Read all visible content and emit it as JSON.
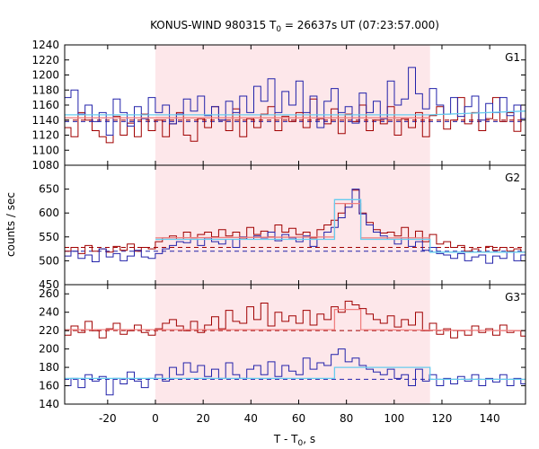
{
  "chart_data": {
    "type": "line",
    "title": "KONUS-WIND 980315 T",
    "title_sub": "0",
    "title_rest": " = 26637s UT (07:23:57.000)",
    "ylabel": "counts / sec",
    "xlabel_main": "T - T",
    "xlabel_sub": "0",
    "xlabel_rest": ", s",
    "xlim": [
      -38,
      155
    ],
    "xticks": [
      -20,
      0,
      20,
      40,
      60,
      80,
      100,
      120,
      140
    ],
    "x_tick_labels": [
      "-20",
      "0",
      "20",
      "40",
      "60",
      "80",
      "100",
      "120",
      "140"
    ],
    "highlight_interval": [
      0,
      115
    ],
    "colors": {
      "highlight": "#fde7ea",
      "series_red": "#a00000",
      "series_blue": "#2222aa",
      "fit_pink": "#f08080",
      "fit_cyan": "#66ccee"
    },
    "bin_width": 2.944,
    "bin_start": -38.3,
    "panels": [
      {
        "name": "G1",
        "ylim": [
          1080,
          1240
        ],
        "yticks": [
          1080,
          1100,
          1120,
          1140,
          1160,
          1180,
          1200,
          1220,
          1240
        ],
        "y_tick_labels": [
          "1080",
          "1100",
          "1120",
          "1140",
          "1160",
          "1180",
          "1200",
          "1220",
          "1240"
        ],
        "background_levels": {
          "red": 1140,
          "blue": 1138
        },
        "series": [
          {
            "color_key": "series_red",
            "values": [
              1130,
              1118,
              1150,
              1140,
              1126,
              1118,
              1110,
              1145,
              1120,
              1136,
              1118,
              1148,
              1126,
              1140,
              1118,
              1135,
              1150,
              1120,
              1112,
              1142,
              1130,
              1158,
              1140,
              1126,
              1155,
              1118,
              1142,
              1130,
              1148,
              1158,
              1126,
              1145,
              1138,
              1150,
              1130,
              1168,
              1142,
              1135,
              1155,
              1122,
              1148,
              1138,
              1160,
              1126,
              1140,
              1135,
              1158,
              1120,
              1142,
              1130,
              1150,
              1118,
              1146,
              1158,
              1128,
              1140,
              1170,
              1135,
              1150,
              1126,
              1142,
              1170,
              1138,
              1150,
              1125,
              1160,
              1142,
              1135,
              1138,
              1148,
              1138,
              1130
            ]
          },
          {
            "color_key": "series_blue",
            "values": [
              1170,
              1180,
              1148,
              1160,
              1138,
              1150,
              1120,
              1168,
              1150,
              1132,
              1158,
              1142,
              1170,
              1150,
              1160,
              1135,
              1148,
              1168,
              1152,
              1172,
              1146,
              1158,
              1140,
              1165,
              1150,
              1172,
              1150,
              1185,
              1165,
              1195,
              1150,
              1178,
              1160,
              1192,
              1150,
              1172,
              1130,
              1165,
              1182,
              1150,
              1158,
              1136,
              1176,
              1150,
              1165,
              1142,
              1192,
              1160,
              1168,
              1210,
              1175,
              1155,
              1182,
              1160,
              1148,
              1170,
              1145,
              1158,
              1172,
              1140,
              1162,
              1150,
              1170,
              1146,
              1160,
              1142,
              1176,
              1158,
              1170,
              1180,
              1165,
              1150
            ]
          }
        ],
        "fits": [
          {
            "color_key": "fit_pink",
            "segments": [
              [
                -38,
                1143
              ],
              [
                115,
                1143
              ]
            ]
          },
          {
            "color_key": "fit_cyan",
            "segments": [
              [
                -38,
                1147
              ],
              [
                115,
                1147
              ],
              [
                155,
                1152
              ]
            ]
          }
        ]
      },
      {
        "name": "G2",
        "ylim": [
          450,
          700
        ],
        "yticks": [
          450,
          500,
          550,
          600,
          650
        ],
        "y_tick_labels": [
          "450",
          "500",
          "550",
          "600",
          "650"
        ],
        "background_levels": {
          "red": 528,
          "blue": 520
        },
        "series": [
          {
            "color_key": "series_red",
            "values": [
              520,
              528,
              515,
              532,
              520,
              525,
              518,
              530,
              522,
              535,
              520,
              528,
              525,
              540,
              548,
              552,
              545,
              560,
              548,
              555,
              560,
              550,
              565,
              552,
              560,
              548,
              570,
              555,
              562,
              550,
              575,
              560,
              568,
              555,
              560,
              548,
              565,
              575,
              585,
              600,
              620,
              648,
              600,
              580,
              565,
              558,
              560,
              552,
              570,
              548,
              562,
              540,
              555,
              535,
              540,
              528,
              532,
              520,
              525,
              518,
              530,
              522,
              528,
              520,
              525,
              518,
              530,
              522,
              528,
              520,
              525,
              522
            ]
          },
          {
            "color_key": "series_blue",
            "values": [
              510,
              520,
              505,
              512,
              498,
              525,
              508,
              515,
              500,
              510,
              522,
              508,
              505,
              515,
              525,
              532,
              540,
              538,
              545,
              532,
              548,
              540,
              535,
              545,
              528,
              550,
              545,
              552,
              548,
              560,
              542,
              555,
              548,
              540,
              552,
              530,
              545,
              560,
              570,
              590,
              612,
              650,
              598,
              575,
              560,
              552,
              545,
              535,
              548,
              530,
              540,
              522,
              528,
              515,
              512,
              505,
              515,
              500,
              508,
              512,
              495,
              510,
              505,
              518,
              500,
              512,
              505,
              515,
              508,
              512,
              505,
              510
            ]
          }
        ],
        "fits": [
          {
            "color_key": "fit_pink",
            "segments": [
              [
                0,
                548
              ],
              [
                75,
                550
              ],
              [
                75,
                620
              ],
              [
                86,
                620
              ],
              [
                86,
                548
              ],
              [
                115,
                548
              ]
            ]
          },
          {
            "color_key": "fit_cyan",
            "segments": [
              [
                0,
                545
              ],
              [
                75,
                545
              ],
              [
                75,
                628
              ],
              [
                86,
                628
              ],
              [
                86,
                545
              ],
              [
                115,
                545
              ],
              [
                115,
                518
              ],
              [
                155,
                518
              ]
            ]
          }
        ]
      },
      {
        "name": "G3",
        "ylim": [
          140,
          270
        ],
        "yticks": [
          140,
          160,
          180,
          200,
          220,
          240,
          260
        ],
        "y_tick_labels": [
          "140",
          "160",
          "180",
          "200",
          "220",
          "240",
          "260"
        ],
        "background_levels": {
          "red": 220,
          "blue": 167
        },
        "series": [
          {
            "color_key": "series_red",
            "values": [
              215,
              225,
              218,
              230,
              220,
              212,
              222,
              228,
              216,
              220,
              226,
              218,
              215,
              222,
              228,
              232,
              225,
              220,
              230,
              218,
              226,
              235,
              222,
              242,
              230,
              228,
              246,
              232,
              250,
              225,
              240,
              230,
              236,
              228,
              242,
              226,
              238,
              232,
              246,
              240,
              252,
              248,
              244,
              238,
              232,
              228,
              236,
              224,
              232,
              226,
              240,
              220,
              228,
              216,
              222,
              212,
              220,
              215,
              225,
              218,
              222,
              215,
              226,
              218,
              220,
              214,
              224,
              218,
              222,
              215,
              220,
              218
            ]
          },
          {
            "color_key": "series_blue",
            "values": [
              160,
              168,
              158,
              172,
              165,
              170,
              150,
              168,
              162,
              175,
              165,
              158,
              168,
              172,
              165,
              180,
              172,
              185,
              175,
              182,
              170,
              178,
              168,
              185,
              172,
              168,
              178,
              182,
              172,
              186,
              170,
              182,
              176,
              172,
              190,
              178,
              185,
              182,
              194,
              200,
              186,
              190,
              182,
              178,
              175,
              172,
              178,
              168,
              172,
              160,
              178,
              165,
              172,
              160,
              168,
              162,
              170,
              165,
              172,
              160,
              168,
              164,
              172,
              160,
              168,
              162,
              170,
              160,
              168,
              164,
              170,
              165
            ]
          }
        ],
        "fits": [
          {
            "color_key": "fit_pink",
            "segments": [
              [
                -38,
                221
              ],
              [
                75,
                221
              ],
              [
                75,
                243
              ],
              [
                86,
                243
              ],
              [
                86,
                221
              ],
              [
                155,
                220
              ]
            ]
          },
          {
            "color_key": "fit_cyan",
            "segments": [
              [
                -38,
                168
              ],
              [
                75,
                168
              ],
              [
                75,
                180
              ],
              [
                115,
                180
              ],
              [
                115,
                167
              ],
              [
                155,
                167
              ]
            ]
          }
        ]
      }
    ]
  }
}
